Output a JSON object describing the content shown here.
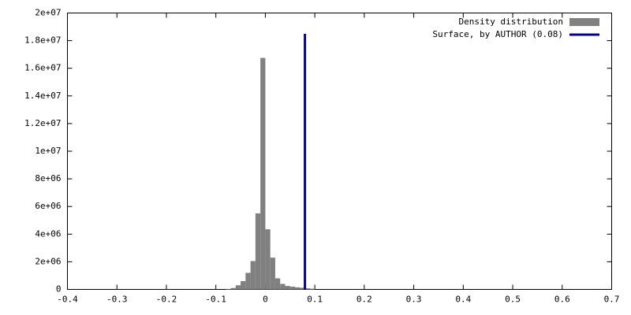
{
  "chart_data": {
    "type": "histogram",
    "bins": [
      -0.08,
      -0.07,
      -0.06,
      -0.05,
      -0.04,
      -0.03,
      -0.02,
      -0.01,
      0,
      0.01,
      0.02,
      0.03,
      0.04,
      0.05,
      0.06,
      0.07,
      0.08,
      0.09,
      0.1
    ],
    "series": [
      {
        "name": "Density distribution",
        "color": "#808080",
        "values": [
          30000,
          100000,
          300000,
          600000,
          1200000,
          2050000,
          5500000,
          16750000,
          4350000,
          2300000,
          800000,
          400000,
          250000,
          200000,
          150000,
          120000,
          80000,
          50000
        ]
      }
    ],
    "overlays": [
      {
        "type": "line",
        "name": "Surface, by AUTHOR (0.08)",
        "color": "#0000a0",
        "x": [
          0.08,
          0.08
        ],
        "values": [
          0,
          18500000
        ]
      }
    ],
    "xlim": [
      -0.4,
      0.7
    ],
    "xticks": [
      -0.4,
      -0.3,
      -0.2,
      -0.1,
      0,
      0.1,
      0.2,
      0.3,
      0.4,
      0.5,
      0.6,
      0.7
    ],
    "ylim": [
      0,
      20000000
    ],
    "yticks": [
      0,
      {
        "value": 2000000,
        "label": "2e+06"
      },
      {
        "value": 4000000,
        "label": "4e+06"
      },
      {
        "value": 6000000,
        "label": "6e+06"
      },
      {
        "value": 8000000,
        "label": "8e+06"
      },
      {
        "value": 10000000,
        "label": "1e+07"
      },
      {
        "value": 12000000,
        "label": "1.2e+07"
      },
      {
        "value": 14000000,
        "label": "1.4e+07"
      },
      {
        "value": 16000000,
        "label": "1.6e+07"
      },
      {
        "value": 18000000,
        "label": "1.8e+07"
      },
      {
        "value": 20000000,
        "label": "2e+07"
      }
    ],
    "grid": false,
    "legend": "top-right"
  }
}
